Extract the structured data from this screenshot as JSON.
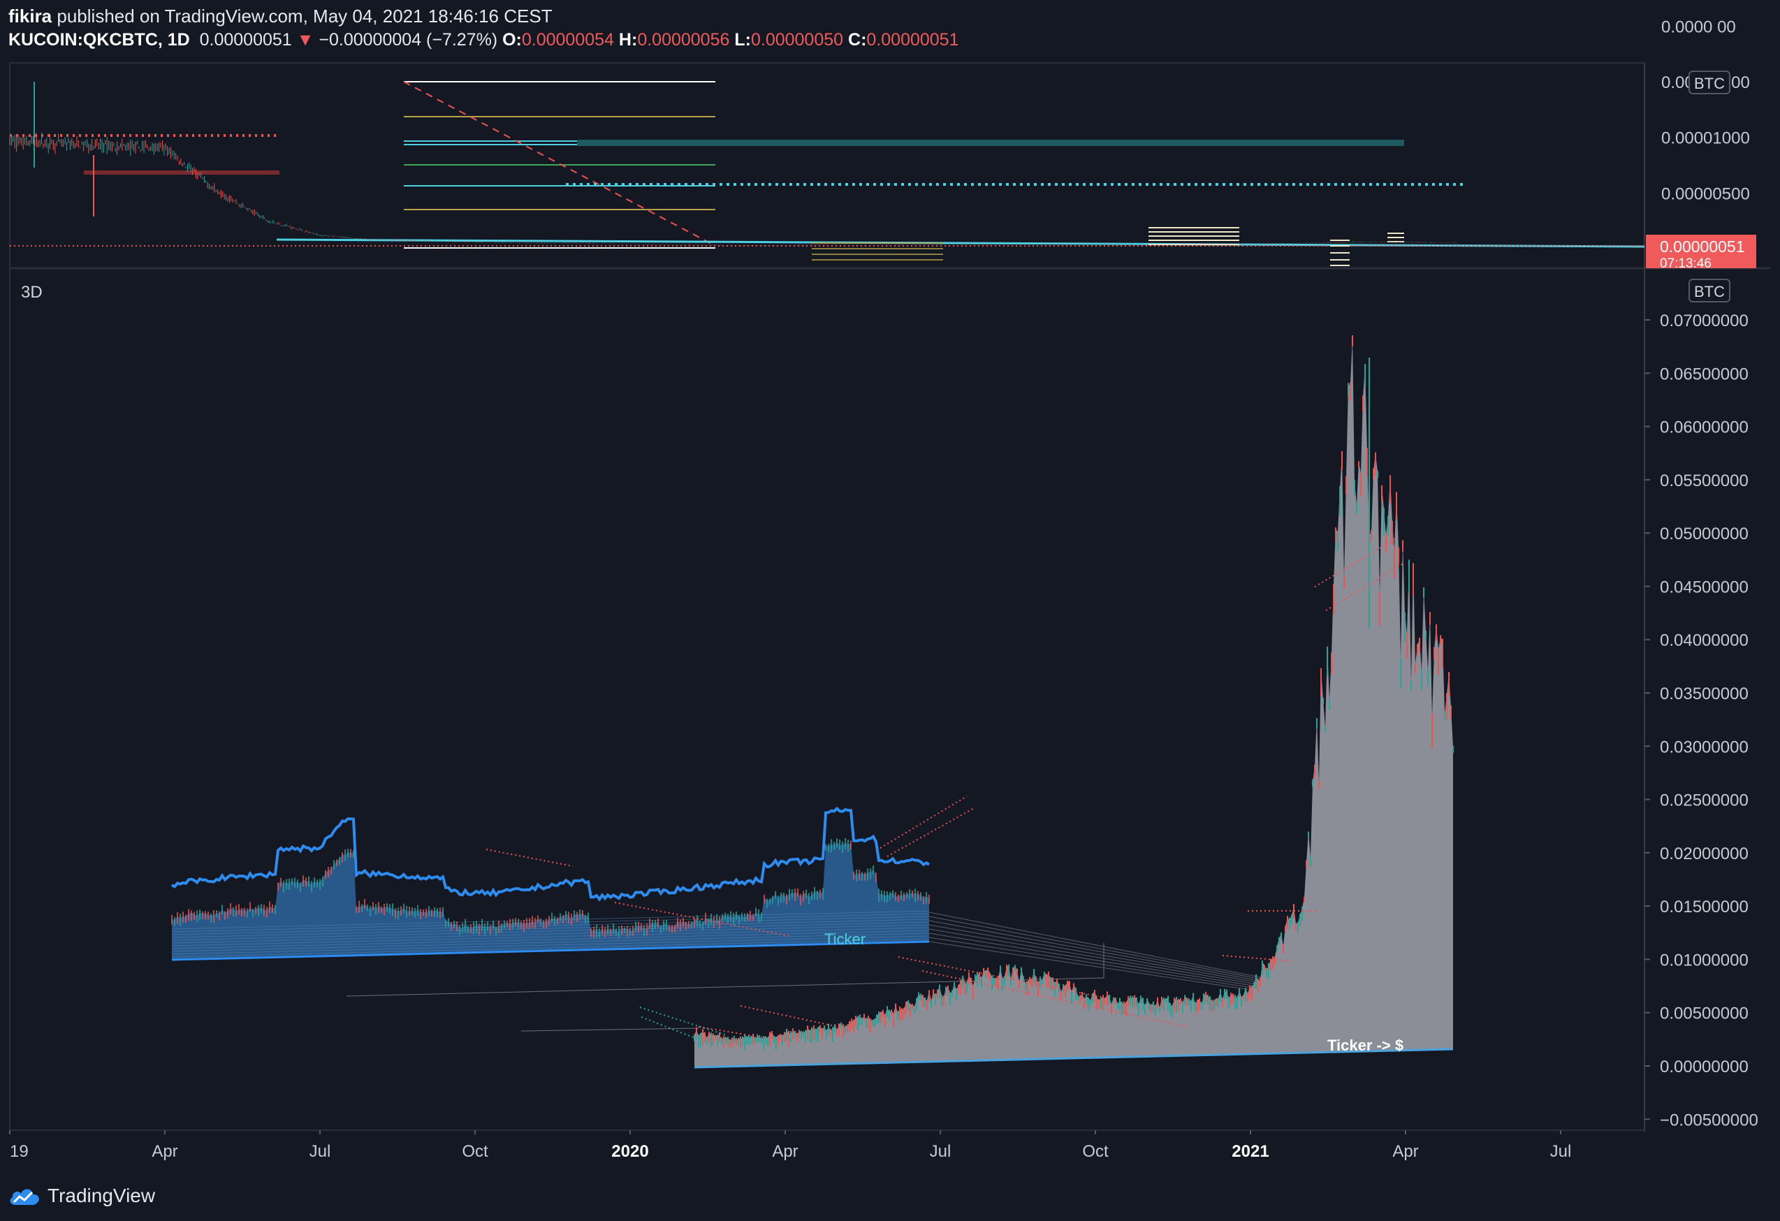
{
  "header": {
    "author": "fikira",
    "published": "published on TradingView.com, May 04, 2021 18:46:16 CEST",
    "symbol": "KUCOIN:QKCBTC, 1D",
    "last": "0.00000051",
    "change": "−0.00000004 (−7.27%)",
    "o_label": "O:",
    "o_value": "0.00000054",
    "h_label": "H:",
    "h_value": "0.00000056",
    "l_label": "L:",
    "l_value": "0.00000050",
    "c_label": "C:",
    "c_value": "0.00000051"
  },
  "colors": {
    "background": "#141823",
    "up": "#26a69a",
    "down": "#ef5350",
    "cyan": "#4dd0e1",
    "blue": "#2e8bef",
    "surface": "#8b8e97",
    "price_tag": "#f05a5a"
  },
  "footer": {
    "brand": "TradingView",
    "logo_icon": "tradingview-cloud-icon"
  },
  "chart_data": [
    {
      "type": "candlestick",
      "pane": "top",
      "currency_tag": "BTC",
      "ylim": [
        0,
        2e-05
      ],
      "yticks": [
        "0.00000500",
        "0.00001000",
        "0.00001500",
        "0.0000 00"
      ],
      "last_price_tag": "0.00000051",
      "countdown": "07:13:46",
      "series": [
        {
          "name": "",
          "x": [
            "2019-01",
            "2019-02",
            "2019-03",
            "2019-04",
            "2019-05",
            "2019-06",
            "2019-07",
            "2019-08",
            "2019-09",
            "2019-10",
            "2019-11",
            "2019-12",
            "2020-01",
            "2020-02",
            "2020-03",
            "2020-04",
            "2020-05",
            "2020-06",
            "2020-07",
            "2020-08",
            "2020-09",
            "2020-10",
            "2020-11",
            "2020-12",
            "2021-01",
            "2021-02",
            "2021-03",
            "2021-04",
            "2021-05"
          ],
          "y": [
            9.7e-06,
            9.4e-06,
            9.2e-06,
            9e-06,
            5.2e-06,
            2.5e-06,
            1.2e-06,
            8e-07,
            7e-07,
            6e-07,
            5e-07,
            5e-07,
            4e-07,
            4e-07,
            3e-07,
            3e-07,
            4e-07,
            4e-07,
            4e-07,
            4e-07,
            4e-07,
            4e-07,
            4e-07,
            4e-07,
            4e-07,
            5e-07,
            6e-07,
            6e-07,
            5.1e-07
          ]
        }
      ]
    },
    {
      "type": "area",
      "pane": "main",
      "label": "3D",
      "currency_tag": "BTC",
      "ylim": [
        -0.005,
        0.07
      ],
      "yticks": [
        "0.07000000",
        "0.06500000",
        "0.06000000",
        "0.05500000",
        "0.05000000",
        "0.04500000",
        "0.04000000",
        "0.03500000",
        "0.03000000",
        "0.02500000",
        "0.02000000",
        "0.01500000",
        "0.01000000",
        "0.00500000",
        "0.00000000",
        "−0.00500000"
      ],
      "xticks": [
        "19",
        "Apr",
        "Jul",
        "Oct",
        "2020",
        "Apr",
        "Jul",
        "Oct",
        "2021",
        "Apr",
        "Jul"
      ],
      "annotations": [
        "Ticker",
        "Ticker -> $"
      ],
      "series": [
        {
          "name": "",
          "x": [
            "2020-01",
            "2020-02",
            "2020-03",
            "2020-04",
            "2020-05",
            "2020-06",
            "2020-07",
            "2020-08",
            "2020-09",
            "2020-10",
            "2020-11",
            "2020-12",
            "2021-01",
            "2021-02",
            "2021-03",
            "2021-04",
            "2021-05"
          ],
          "y": [
            0.0047,
            0.0035,
            0.0025,
            0.003,
            0.0035,
            0.0048,
            0.0065,
            0.0085,
            0.0075,
            0.0058,
            0.005,
            0.0052,
            0.006,
            0.014,
            0.06,
            0.042,
            0.032
          ]
        }
      ]
    }
  ]
}
